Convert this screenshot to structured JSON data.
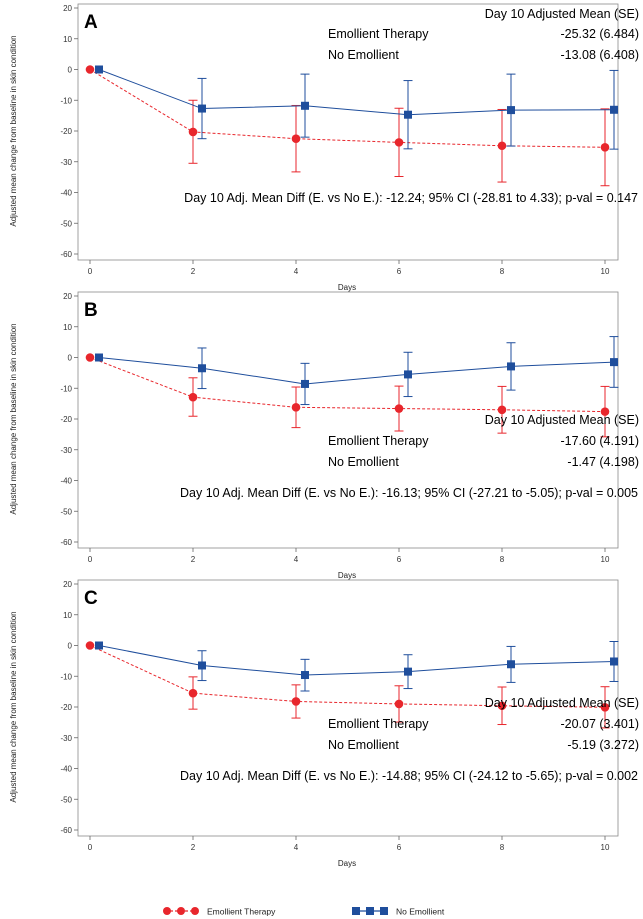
{
  "chart_data": [
    {
      "type": "line",
      "panel_label": "A",
      "x": [
        0,
        2,
        4,
        6,
        8,
        10
      ],
      "xlabel": "Days",
      "ylabel": "Adjusted mean change from baseline in skin condition",
      "xticks": [
        "0",
        "2",
        "4",
        "6",
        "8",
        "10"
      ],
      "yticks": [
        "20",
        "10",
        "0",
        "-10",
        "-20",
        "-30",
        "-40",
        "-50",
        "-60"
      ],
      "ylim": [
        -60,
        20
      ],
      "series": [
        {
          "name": "Emollient Therapy",
          "color": "#e8262c",
          "line": "dashed",
          "marker": "circle",
          "values": [
            0,
            -20.3,
            -22.5,
            -23.7,
            -24.8,
            -25.3
          ],
          "lower": [
            0,
            -30.5,
            -33.3,
            -34.8,
            -36.6,
            -37.8
          ],
          "upper": [
            0,
            -10.0,
            -11.7,
            -12.6,
            -13.0,
            -12.8
          ]
        },
        {
          "name": "No Emollient",
          "color": "#1f4e9c",
          "line": "solid",
          "marker": "square",
          "values": [
            0,
            -12.7,
            -11.8,
            -14.7,
            -13.2,
            -13.1
          ],
          "lower": [
            0,
            -22.5,
            -22.0,
            -25.8,
            -24.9,
            -25.9
          ],
          "upper": [
            0,
            -2.9,
            -1.5,
            -3.6,
            -1.5,
            -0.3
          ]
        }
      ],
      "stats_header": "Day 10 Adjusted Mean (SE)",
      "stats_rows": [
        {
          "label": "Emollient Therapy",
          "value": "-25.32 (6.484)"
        },
        {
          "label": "No Emollient",
          "value": "-13.08 (6.408)"
        }
      ],
      "diff_text": "Day 10 Adj. Mean Diff (E. vs No E.): -12.24; 95% CI (-28.81 to 4.33); p-val = 0.147"
    },
    {
      "type": "line",
      "panel_label": "B",
      "x": [
        0,
        2,
        4,
        6,
        8,
        10
      ],
      "xlabel": "Days",
      "ylabel": "Adjusted mean change from baseline in skin condition",
      "xticks": [
        "0",
        "2",
        "4",
        "6",
        "8",
        "10"
      ],
      "yticks": [
        "20",
        "10",
        "0",
        "-10",
        "-20",
        "-30",
        "-40",
        "-50",
        "-60"
      ],
      "ylim": [
        -60,
        20
      ],
      "series": [
        {
          "name": "Emollient Therapy",
          "color": "#e8262c",
          "line": "dashed",
          "marker": "circle",
          "values": [
            0,
            -12.9,
            -16.2,
            -16.6,
            -17.0,
            -17.6
          ],
          "lower": [
            0,
            -19.1,
            -22.8,
            -23.9,
            -24.6,
            -25.8
          ],
          "upper": [
            0,
            -6.6,
            -9.6,
            -9.3,
            -9.4,
            -9.4
          ]
        },
        {
          "name": "No Emollient",
          "color": "#1f4e9c",
          "line": "solid",
          "marker": "square",
          "values": [
            0,
            -3.5,
            -8.6,
            -5.5,
            -2.9,
            -1.5
          ],
          "lower": [
            0,
            -10.1,
            -15.3,
            -12.7,
            -10.6,
            -9.7
          ],
          "upper": [
            0,
            3.1,
            -1.9,
            1.7,
            4.8,
            6.8
          ]
        }
      ],
      "stats_header": "Day 10 Adjusted Mean (SE)",
      "stats_rows": [
        {
          "label": "Emollient Therapy",
          "value": "-17.60 (4.191)"
        },
        {
          "label": "No Emollient",
          "value": "-1.47 (4.198)"
        }
      ],
      "diff_text": "Day 10 Adj. Mean Diff (E. vs No E.): -16.13; 95% CI (-27.21 to -5.05); p-val = 0.005"
    },
    {
      "type": "line",
      "panel_label": "C",
      "x": [
        0,
        2,
        4,
        6,
        8,
        10
      ],
      "xlabel": "Days",
      "ylabel": "Adjusted mean change from baseline in skin condition",
      "xticks": [
        "0",
        "2",
        "4",
        "6",
        "8",
        "10"
      ],
      "yticks": [
        "20",
        "10",
        "0",
        "-10",
        "-20",
        "-30",
        "-40",
        "-50",
        "-60"
      ],
      "ylim": [
        -60,
        20
      ],
      "series": [
        {
          "name": "Emollient Therapy",
          "color": "#e8262c",
          "line": "dashed",
          "marker": "circle",
          "values": [
            0,
            -15.5,
            -18.2,
            -19.0,
            -19.6,
            -20.1
          ],
          "lower": [
            0,
            -20.7,
            -23.6,
            -24.9,
            -25.7,
            -26.8
          ],
          "upper": [
            0,
            -10.2,
            -12.8,
            -13.1,
            -13.5,
            -13.4
          ]
        },
        {
          "name": "No Emollient",
          "color": "#1f4e9c",
          "line": "solid",
          "marker": "square",
          "values": [
            0,
            -6.5,
            -9.6,
            -8.5,
            -6.1,
            -5.2
          ],
          "lower": [
            0,
            -11.4,
            -14.8,
            -14.0,
            -12.0,
            -11.7
          ],
          "upper": [
            0,
            -1.7,
            -4.5,
            -3.0,
            -0.3,
            1.3
          ]
        }
      ],
      "stats_header": "Day 10 Adjusted Mean (SE)",
      "stats_rows": [
        {
          "label": "Emollient Therapy",
          "value": "-20.07 (3.401)"
        },
        {
          "label": "No Emollient",
          "value": "-5.19 (3.272)"
        }
      ],
      "diff_text": "Day 10 Adj. Mean Diff (E. vs No E.): -14.88; 95% CI (-24.12 to -5.65); p-val = 0.002"
    }
  ],
  "legend": [
    {
      "name": "Emollient Therapy",
      "color": "#e8262c",
      "marker": "circle",
      "line": "dashed"
    },
    {
      "name": "No Emollient",
      "color": "#1f4e9c",
      "marker": "square",
      "line": "solid"
    }
  ]
}
